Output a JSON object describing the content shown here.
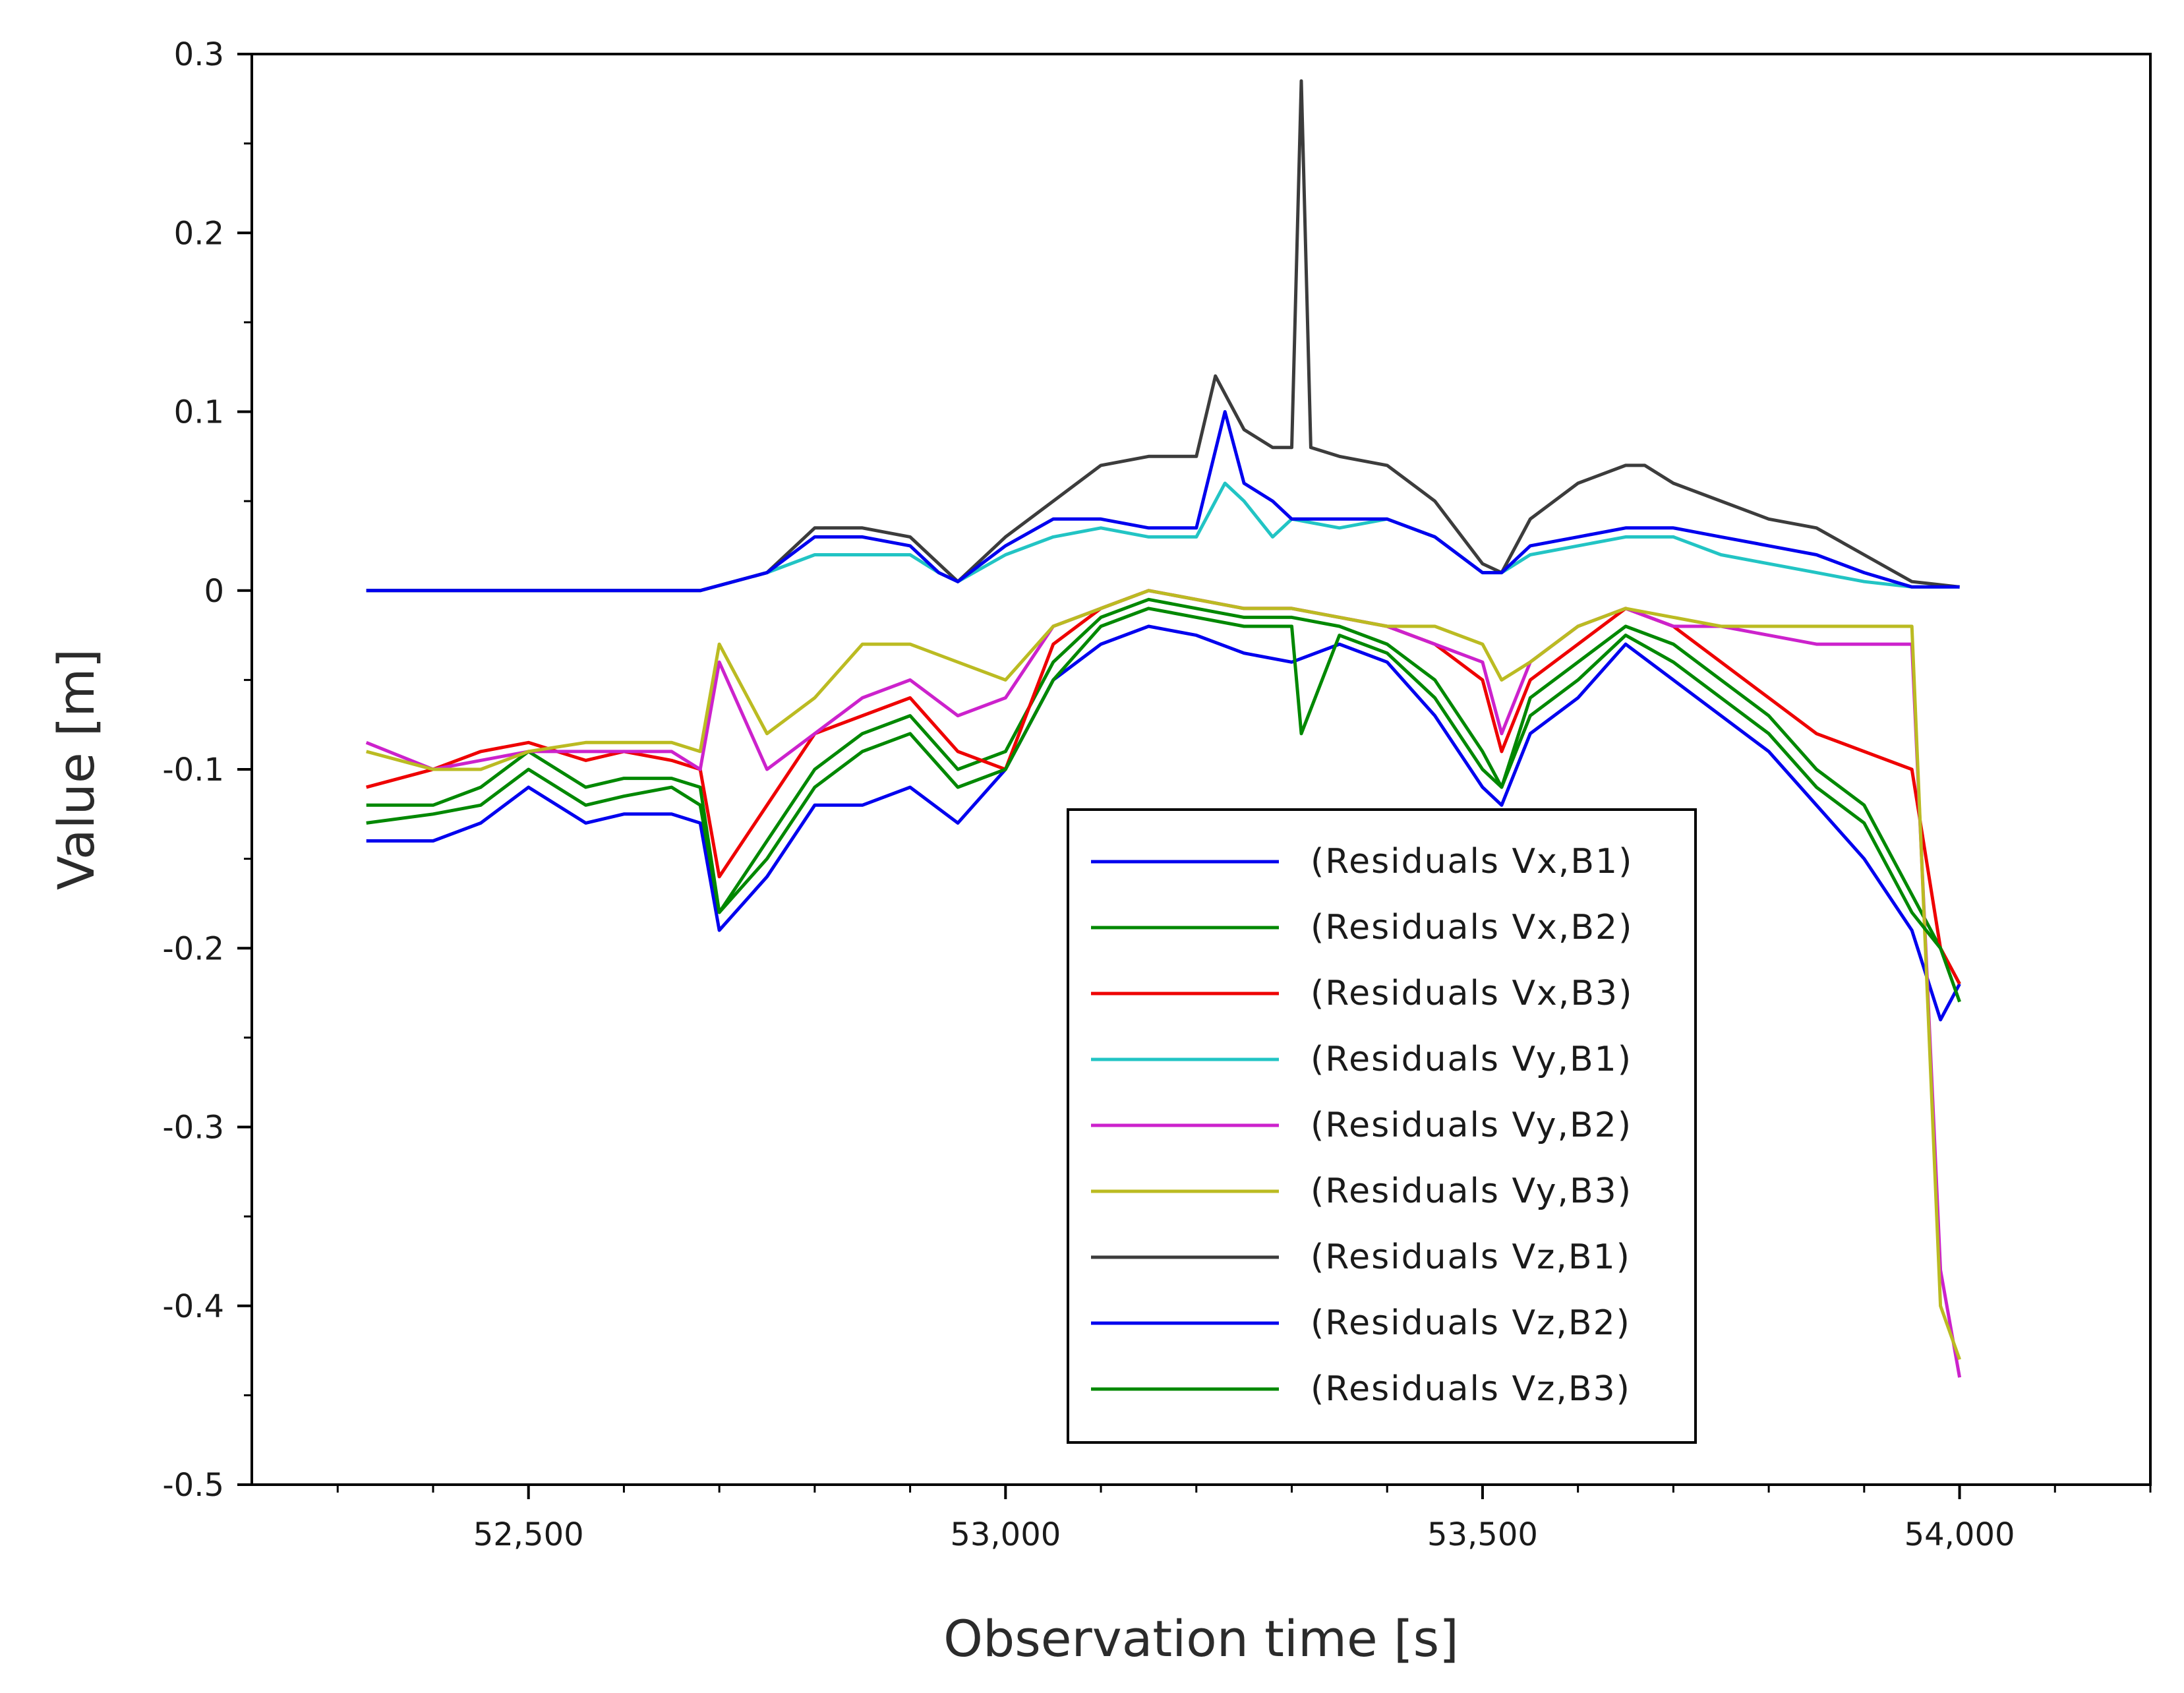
{
  "chart_data": {
    "type": "line",
    "title": "",
    "xlabel": "Observation time [s]",
    "ylabel": "Value [m]",
    "xlim": [
      52210,
      54200
    ],
    "ylim": [
      -0.5,
      0.3
    ],
    "x_ticks": [
      52500,
      53000,
      53500,
      54000
    ],
    "x_tick_labels": [
      "52,500",
      "53,000",
      "53,500",
      "54,000"
    ],
    "y_ticks": [
      0.3,
      0.2,
      0.1,
      0,
      -0.1,
      -0.2,
      -0.3,
      -0.4,
      -0.5
    ],
    "y_tick_labels": [
      "0.3",
      "0.2",
      "0.1",
      "0",
      "-0.1",
      "-0.2",
      "-0.3",
      "-0.4",
      "-0.5"
    ],
    "grid": false,
    "legend_position": "lower-center",
    "series": [
      {
        "name": "(Residuals Vx,B1)",
        "color": "#0000ee",
        "x": [
          52330,
          52400,
          52450,
          52500,
          52560,
          52600,
          52650,
          52680,
          52700,
          52750,
          52800,
          52850,
          52900,
          52950,
          53000,
          53050,
          53100,
          53150,
          53200,
          53250,
          53300,
          53350,
          53400,
          53450,
          53500,
          53520,
          53550,
          53600,
          53650,
          53700,
          53750,
          53800,
          53850,
          53900,
          53950,
          53980,
          54000
        ],
        "y": [
          -0.14,
          -0.14,
          -0.13,
          -0.11,
          -0.13,
          -0.125,
          -0.125,
          -0.13,
          -0.19,
          -0.16,
          -0.12,
          -0.12,
          -0.11,
          -0.13,
          -0.1,
          -0.05,
          -0.03,
          -0.02,
          -0.025,
          -0.035,
          -0.04,
          -0.03,
          -0.04,
          -0.07,
          -0.11,
          -0.12,
          -0.08,
          -0.06,
          -0.03,
          -0.05,
          -0.07,
          -0.09,
          -0.12,
          -0.15,
          -0.19,
          -0.24,
          -0.22
        ]
      },
      {
        "name": "(Residuals Vx,B2)",
        "color": "#008800",
        "x": [
          52330,
          52400,
          52450,
          52500,
          52560,
          52600,
          52650,
          52680,
          52700,
          52750,
          52800,
          52850,
          52900,
          52950,
          53000,
          53050,
          53100,
          53150,
          53200,
          53250,
          53300,
          53350,
          53400,
          53450,
          53500,
          53520,
          53550,
          53600,
          53650,
          53700,
          53750,
          53800,
          53850,
          53900,
          53950,
          53980,
          54000
        ],
        "y": [
          -0.12,
          -0.12,
          -0.11,
          -0.09,
          -0.11,
          -0.105,
          -0.105,
          -0.11,
          -0.18,
          -0.14,
          -0.1,
          -0.08,
          -0.07,
          -0.1,
          -0.09,
          -0.04,
          -0.015,
          -0.005,
          -0.01,
          -0.015,
          -0.015,
          -0.02,
          -0.03,
          -0.05,
          -0.09,
          -0.11,
          -0.06,
          -0.04,
          -0.02,
          -0.03,
          -0.05,
          -0.07,
          -0.1,
          -0.12,
          -0.17,
          -0.2,
          -0.22
        ]
      },
      {
        "name": "(Residuals Vx,B3)",
        "color": "#ee0000",
        "x": [
          52330,
          52400,
          52450,
          52500,
          52560,
          52600,
          52650,
          52680,
          52700,
          52750,
          52800,
          52850,
          52900,
          52950,
          53000,
          53050,
          53100,
          53150,
          53200,
          53250,
          53300,
          53350,
          53400,
          53450,
          53500,
          53520,
          53550,
          53600,
          53650,
          53700,
          53750,
          53800,
          53850,
          53900,
          53950,
          53980,
          54000
        ],
        "y": [
          -0.11,
          -0.1,
          -0.09,
          -0.085,
          -0.095,
          -0.09,
          -0.095,
          -0.1,
          -0.16,
          -0.12,
          -0.08,
          -0.07,
          -0.06,
          -0.09,
          -0.1,
          -0.03,
          -0.01,
          0,
          -0.005,
          -0.01,
          -0.01,
          -0.015,
          -0.02,
          -0.03,
          -0.05,
          -0.09,
          -0.05,
          -0.03,
          -0.01,
          -0.02,
          -0.04,
          -0.06,
          -0.08,
          -0.09,
          -0.1,
          -0.2,
          -0.22
        ]
      },
      {
        "name": "(Residuals Vy,B1)",
        "color": "#22c4c4",
        "x": [
          52330,
          52680,
          52750,
          52800,
          52850,
          52900,
          52930,
          52950,
          53000,
          53050,
          53100,
          53150,
          53200,
          53230,
          53250,
          53280,
          53300,
          53350,
          53400,
          53450,
          53500,
          53520,
          53550,
          53600,
          53650,
          53700,
          53750,
          53800,
          53850,
          53900,
          53950,
          54000
        ],
        "y": [
          0,
          0,
          0.01,
          0.02,
          0.02,
          0.02,
          0.01,
          0.005,
          0.02,
          0.03,
          0.035,
          0.03,
          0.03,
          0.06,
          0.05,
          0.03,
          0.04,
          0.035,
          0.04,
          0.03,
          0.01,
          0.01,
          0.02,
          0.025,
          0.03,
          0.03,
          0.02,
          0.015,
          0.01,
          0.005,
          0.002,
          0.002
        ]
      },
      {
        "name": "(Residuals Vy,B2)",
        "color": "#cc22cc",
        "x": [
          52330,
          52400,
          52450,
          52500,
          52560,
          52600,
          52650,
          52680,
          52700,
          52750,
          52800,
          52850,
          52900,
          52950,
          53000,
          53050,
          53100,
          53150,
          53200,
          53250,
          53300,
          53350,
          53400,
          53450,
          53500,
          53520,
          53550,
          53600,
          53650,
          53700,
          53750,
          53800,
          53850,
          53900,
          53950,
          53980,
          54000
        ],
        "y": [
          -0.085,
          -0.1,
          -0.095,
          -0.09,
          -0.09,
          -0.09,
          -0.09,
          -0.1,
          -0.04,
          -0.1,
          -0.08,
          -0.06,
          -0.05,
          -0.07,
          -0.06,
          -0.02,
          -0.01,
          0,
          -0.005,
          -0.01,
          -0.01,
          -0.015,
          -0.02,
          -0.03,
          -0.04,
          -0.08,
          -0.04,
          -0.02,
          -0.01,
          -0.02,
          -0.02,
          -0.025,
          -0.03,
          -0.03,
          -0.03,
          -0.38,
          -0.44
        ]
      },
      {
        "name": "(Residuals Vy,B3)",
        "color": "#bbbb22",
        "x": [
          52330,
          52400,
          52450,
          52500,
          52560,
          52600,
          52650,
          52680,
          52700,
          52750,
          52800,
          52850,
          52900,
          52950,
          53000,
          53050,
          53100,
          53150,
          53200,
          53250,
          53300,
          53350,
          53400,
          53450,
          53500,
          53520,
          53550,
          53600,
          53650,
          53700,
          53750,
          53800,
          53850,
          53900,
          53950,
          53980,
          54000
        ],
        "y": [
          -0.09,
          -0.1,
          -0.1,
          -0.09,
          -0.085,
          -0.085,
          -0.085,
          -0.09,
          -0.03,
          -0.08,
          -0.06,
          -0.03,
          -0.03,
          -0.04,
          -0.05,
          -0.02,
          -0.01,
          0,
          -0.005,
          -0.01,
          -0.01,
          -0.015,
          -0.02,
          -0.02,
          -0.03,
          -0.05,
          -0.04,
          -0.02,
          -0.01,
          -0.015,
          -0.02,
          -0.02,
          -0.02,
          -0.02,
          -0.02,
          -0.4,
          -0.43
        ]
      },
      {
        "name": "(Residuals Vz,B1)",
        "color": "#3c3c3c",
        "x": [
          52330,
          52680,
          52750,
          52800,
          52850,
          52900,
          52930,
          52950,
          53000,
          53050,
          53100,
          53150,
          53200,
          53220,
          53250,
          53280,
          53300,
          53310,
          53320,
          53350,
          53400,
          53450,
          53500,
          53520,
          53550,
          53600,
          53650,
          53670,
          53700,
          53750,
          53800,
          53850,
          53900,
          53950,
          54000
        ],
        "y": [
          0,
          0,
          0.01,
          0.035,
          0.035,
          0.03,
          0.015,
          0.005,
          0.03,
          0.05,
          0.07,
          0.075,
          0.075,
          0.12,
          0.09,
          0.08,
          0.08,
          0.285,
          0.08,
          0.075,
          0.07,
          0.05,
          0.015,
          0.01,
          0.04,
          0.06,
          0.07,
          0.07,
          0.06,
          0.05,
          0.04,
          0.035,
          0.02,
          0.005,
          0.002
        ]
      },
      {
        "name": "(Residuals Vz,B2)",
        "color": "#0000ee",
        "x": [
          52330,
          52680,
          52750,
          52800,
          52850,
          52900,
          52930,
          52950,
          53000,
          53050,
          53100,
          53150,
          53200,
          53230,
          53250,
          53280,
          53300,
          53350,
          53400,
          53450,
          53500,
          53520,
          53550,
          53600,
          53650,
          53700,
          53750,
          53800,
          53850,
          53900,
          53950,
          54000
        ],
        "y": [
          0,
          0,
          0.01,
          0.03,
          0.03,
          0.025,
          0.01,
          0.005,
          0.025,
          0.04,
          0.04,
          0.035,
          0.035,
          0.1,
          0.06,
          0.05,
          0.04,
          0.04,
          0.04,
          0.03,
          0.01,
          0.01,
          0.025,
          0.03,
          0.035,
          0.035,
          0.03,
          0.025,
          0.02,
          0.01,
          0.002,
          0.002
        ]
      },
      {
        "name": "(Residuals Vz,B3)",
        "color": "#008800",
        "x": [
          52330,
          52400,
          52450,
          52500,
          52560,
          52600,
          52650,
          52680,
          52700,
          52750,
          52800,
          52850,
          52900,
          52950,
          53000,
          53050,
          53100,
          53150,
          53200,
          53250,
          53300,
          53310,
          53350,
          53400,
          53450,
          53500,
          53520,
          53550,
          53600,
          53650,
          53700,
          53750,
          53800,
          53850,
          53900,
          53950,
          53980,
          54000
        ],
        "y": [
          -0.13,
          -0.125,
          -0.12,
          -0.1,
          -0.12,
          -0.115,
          -0.11,
          -0.12,
          -0.18,
          -0.15,
          -0.11,
          -0.09,
          -0.08,
          -0.11,
          -0.1,
          -0.05,
          -0.02,
          -0.01,
          -0.015,
          -0.02,
          -0.02,
          -0.08,
          -0.025,
          -0.035,
          -0.06,
          -0.1,
          -0.11,
          -0.07,
          -0.05,
          -0.025,
          -0.04,
          -0.06,
          -0.08,
          -0.11,
          -0.13,
          -0.18,
          -0.2,
          -0.23
        ]
      }
    ]
  }
}
